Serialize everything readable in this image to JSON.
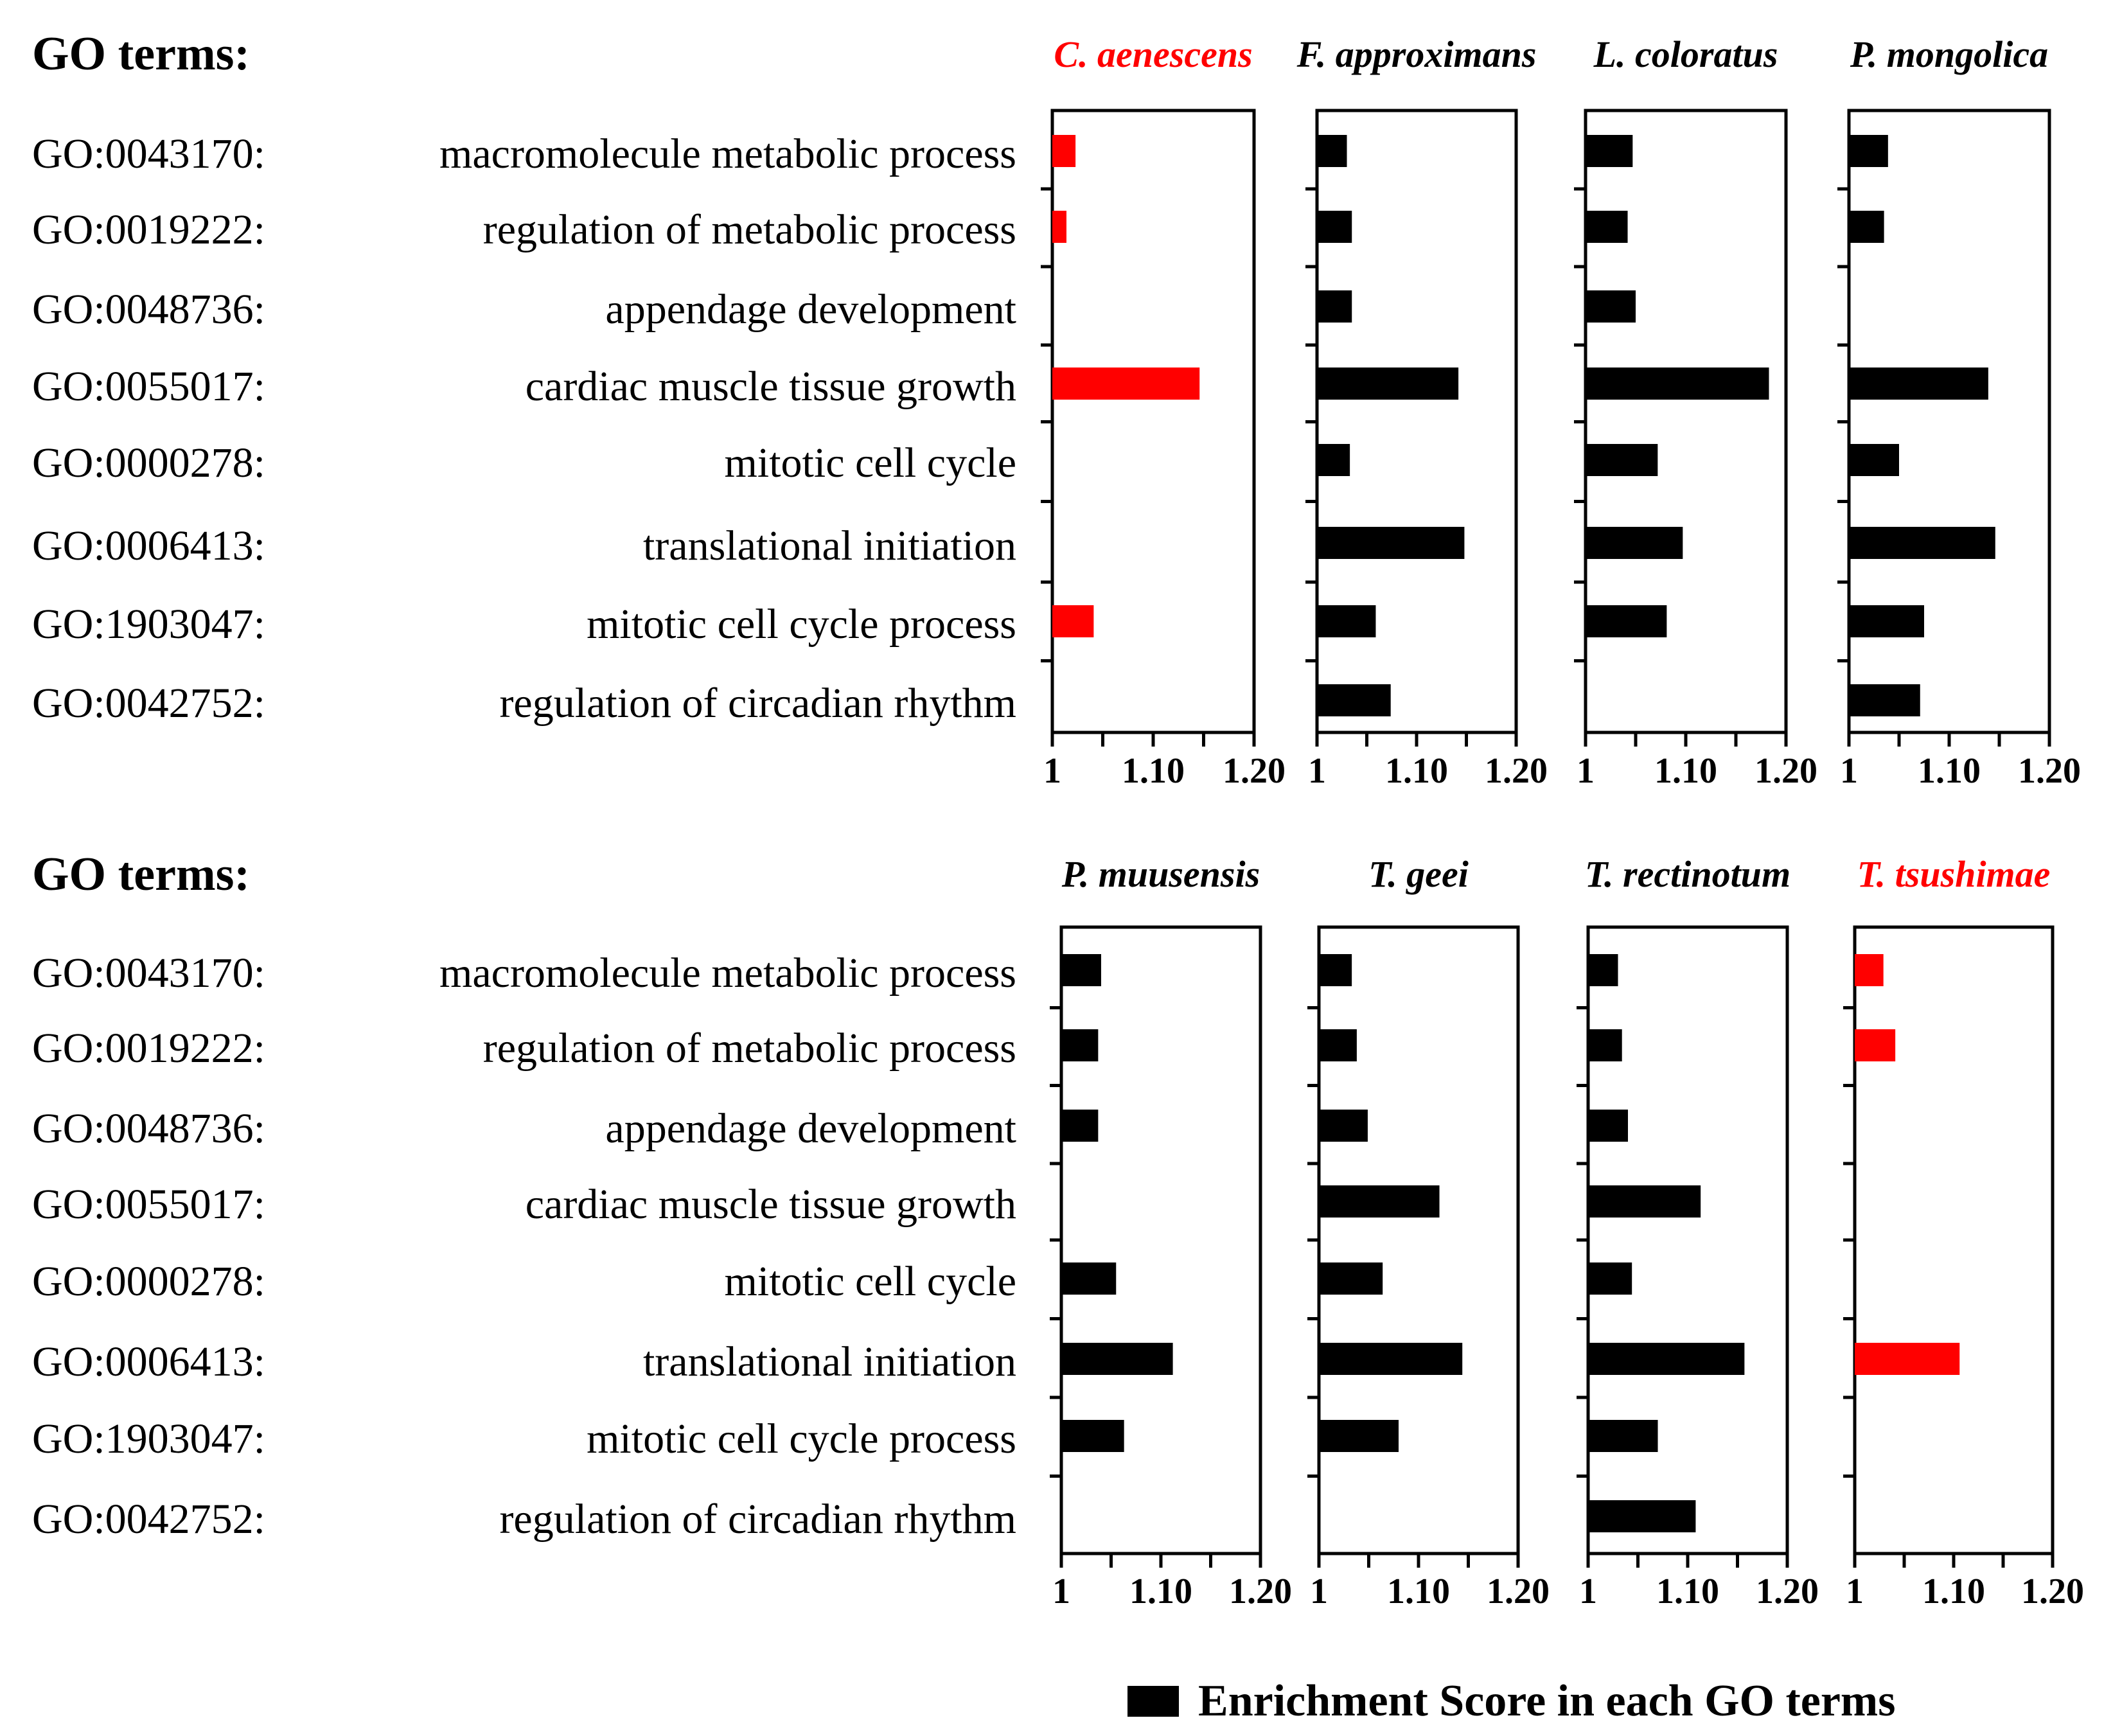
{
  "legend": {
    "label": "Enrichment Score in each GO terms",
    "color": "#000000"
  },
  "colors": {
    "black": "#000000",
    "red": "#ff0000"
  },
  "chart_data": {
    "type": "bar",
    "orientation": "horizontal",
    "xlim": [
      1,
      1.2
    ],
    "xticks": [
      "1",
      "1.10",
      "1.20"
    ],
    "categories": [
      "GO:0043170: macromolecule metabolic process",
      "GO:0019222: regulation of metabolic process",
      "GO:0048736: appendage development",
      "GO:0055017: cardiac muscle tissue growth",
      "GO:0000278: mitotic cell cycle",
      "GO:0006413: translational initiation",
      "GO:1903047: mitotic cell cycle process",
      "GO:0042752: regulation of circadian rhythm"
    ],
    "panels": [
      {
        "header": "GO terms:",
        "terms": [
          {
            "id": "GO:0043170:",
            "name": "macromolecule metabolic process"
          },
          {
            "id": "GO:0019222:",
            "name": "regulation of metabolic process"
          },
          {
            "id": "GO:0048736:",
            "name": "appendage development"
          },
          {
            "id": "GO:0055017:",
            "name": "cardiac muscle tissue growth"
          },
          {
            "id": "GO:0000278:",
            "name": "mitotic cell cycle"
          },
          {
            "id": "GO:0006413:",
            "name": "translational initiation"
          },
          {
            "id": "GO:1903047:",
            "name": "mitotic cell cycle process"
          },
          {
            "id": "GO:0042752:",
            "name": "regulation of circadian rhythm"
          }
        ],
        "series": [
          {
            "name": "C. aenescens",
            "color": "#ff0000",
            "values": [
              1.023,
              1.014,
              null,
              1.146,
              null,
              null,
              1.041,
              null
            ]
          },
          {
            "name": "F. approximans",
            "color": "#000000",
            "values": [
              1.03,
              1.035,
              1.035,
              1.142,
              1.033,
              1.148,
              1.059,
              1.074
            ]
          },
          {
            "name": "L. coloratus",
            "color": "#000000",
            "values": [
              1.047,
              1.042,
              1.05,
              1.183,
              1.072,
              1.097,
              1.081,
              null
            ]
          },
          {
            "name": "P. mongolica",
            "color": "#000000",
            "values": [
              1.039,
              1.035,
              null,
              1.139,
              1.05,
              1.146,
              1.075,
              1.071
            ]
          }
        ]
      },
      {
        "header": "GO terms:",
        "terms": [
          {
            "id": "GO:0043170:",
            "name": "macromolecule metabolic process"
          },
          {
            "id": "GO:0019222:",
            "name": "regulation of metabolic process"
          },
          {
            "id": "GO:0048736:",
            "name": "appendage development"
          },
          {
            "id": "GO:0055017:",
            "name": "cardiac muscle tissue growth"
          },
          {
            "id": "GO:0000278:",
            "name": "mitotic cell cycle"
          },
          {
            "id": "GO:0006413:",
            "name": "translational initiation"
          },
          {
            "id": "GO:1903047:",
            "name": "mitotic cell cycle process"
          },
          {
            "id": "GO:0042752:",
            "name": "regulation of circadian rhythm"
          }
        ],
        "series": [
          {
            "name": "P.  muusensis",
            "color": "#000000",
            "values": [
              1.04,
              1.037,
              1.037,
              null,
              1.055,
              1.112,
              1.063,
              null
            ]
          },
          {
            "name": "T. geei",
            "color": "#000000",
            "values": [
              1.033,
              1.038,
              1.049,
              1.121,
              1.064,
              1.144,
              1.08,
              null
            ]
          },
          {
            "name": "T. rectinotum",
            "color": "#000000",
            "values": [
              1.03,
              1.034,
              1.04,
              1.113,
              1.044,
              1.157,
              1.07,
              1.108
            ]
          },
          {
            "name": "T. tsushimae",
            "color": "#ff0000",
            "values": [
              1.029,
              1.041,
              null,
              null,
              null,
              1.106,
              null,
              null
            ]
          }
        ]
      }
    ]
  }
}
